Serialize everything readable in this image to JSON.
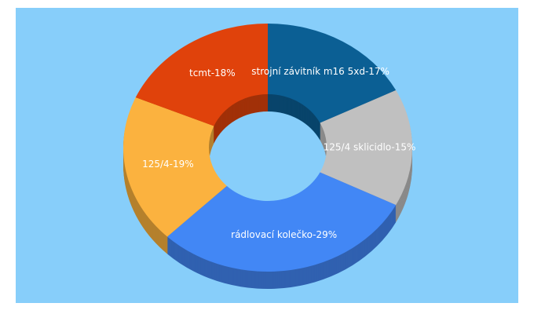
{
  "chart_data": {
    "type": "pie",
    "donut": true,
    "three_d": true,
    "values": [
      17,
      15,
      29,
      19,
      18
    ],
    "value_labels": [
      "strojní závitník m16 5xd-17%",
      "125/4 sklicidlo-15%",
      "rádlovací kolečko-29%",
      "125/4-19%",
      "tcmt-18%"
    ],
    "colors": [
      "#0b5f94",
      "#c0c0c0",
      "#4287f5",
      "#fbb23f",
      "#e0420b"
    ],
    "background": "#87cefa"
  }
}
